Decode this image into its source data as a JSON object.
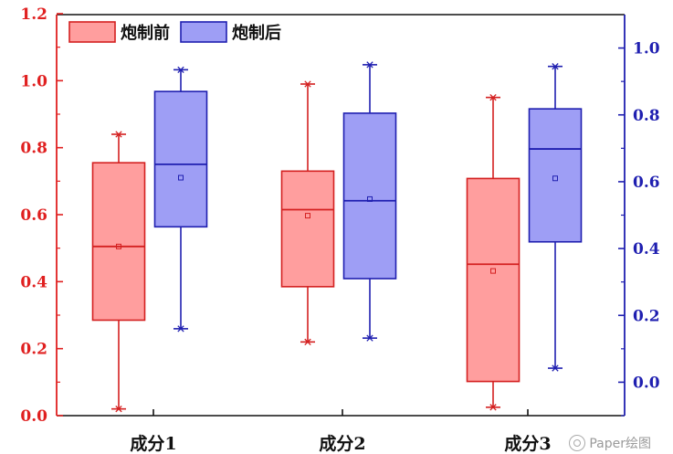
{
  "chart_data": {
    "type": "box",
    "categories": [
      "成分1",
      "成分2",
      "成分3"
    ],
    "left_axis": {
      "ylim": [
        0,
        1.2
      ],
      "ticks": [
        "0.0",
        "0.2",
        "0.4",
        "0.6",
        "0.8",
        "1.0",
        "1.2"
      ],
      "tick_values": [
        0,
        0.2,
        0.4,
        0.6,
        0.8,
        1.0,
        1.2
      ],
      "color": "#e02020"
    },
    "right_axis": {
      "ylim": [
        -0.1,
        1.1
      ],
      "ticks": [
        "0.0",
        "0.2",
        "0.4",
        "0.6",
        "0.8",
        "1.0"
      ],
      "tick_values": [
        0,
        0.2,
        0.4,
        0.6,
        0.8,
        1.0
      ],
      "color": "#1f1fb0"
    },
    "series": [
      {
        "name": "炮制前",
        "axis": "left",
        "fill": "#ff9e9e",
        "stroke": "#d42020",
        "boxes": [
          {
            "whisker_min": 0.02,
            "q1": 0.285,
            "median": 0.505,
            "q3": 0.755,
            "whisker_max": 0.84,
            "mean": 0.505
          },
          {
            "whisker_min": 0.22,
            "q1": 0.385,
            "median": 0.615,
            "q3": 0.73,
            "whisker_max": 0.99,
            "mean": 0.597
          },
          {
            "whisker_min": 0.025,
            "q1": 0.102,
            "median": 0.452,
            "q3": 0.708,
            "whisker_max": 0.95,
            "mean": 0.432
          }
        ]
      },
      {
        "name": "炮制后",
        "axis": "right",
        "fill": "#9e9ef5",
        "stroke": "#1f1fb0",
        "boxes": [
          {
            "whisker_min": 0.16,
            "q1": 0.465,
            "median": 0.652,
            "q3": 0.87,
            "whisker_max": 0.935,
            "mean": 0.612
          },
          {
            "whisker_min": 0.132,
            "q1": 0.31,
            "median": 0.543,
            "q3": 0.805,
            "whisker_max": 0.95,
            "mean": 0.548
          },
          {
            "whisker_min": 0.042,
            "q1": 0.42,
            "median": 0.698,
            "q3": 0.818,
            "whisker_max": 0.945,
            "mean": 0.61
          }
        ]
      }
    ],
    "legend": {
      "position": "top-left",
      "entries": [
        "炮制前",
        "炮制后"
      ]
    }
  },
  "watermark": {
    "text": "Paper绘图"
  }
}
